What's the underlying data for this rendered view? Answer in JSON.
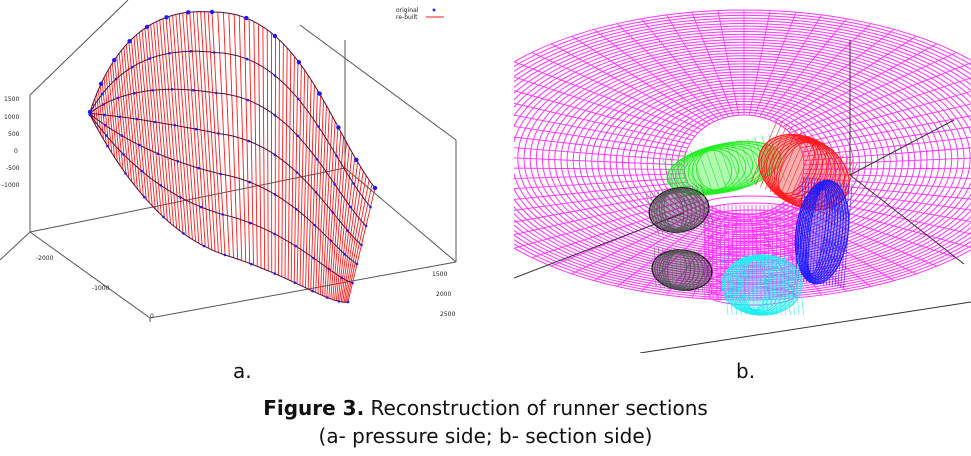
{
  "panel_a": {
    "legend": [
      "original",
      "re-built"
    ],
    "z_ticks": [
      "1500",
      "1000",
      "500",
      "0",
      "-500",
      "-1000"
    ],
    "x_ticks": [
      "-2000",
      "-1000",
      "0"
    ],
    "y_ticks": [
      "1500",
      "2000",
      "2500"
    ]
  },
  "labels": {
    "a": "a.",
    "b": "b."
  },
  "caption": {
    "figure_label": "Figure 3.",
    "title": " Reconstruction of runner sections",
    "subtitle": "(a- pressure side; b- section side)"
  },
  "colors": {
    "red": "#ff1a1a",
    "blue": "#1a1aff",
    "magenta": "#ff33ff",
    "green": "#22ee22",
    "cyan": "#22eeee",
    "black": "#111111"
  }
}
